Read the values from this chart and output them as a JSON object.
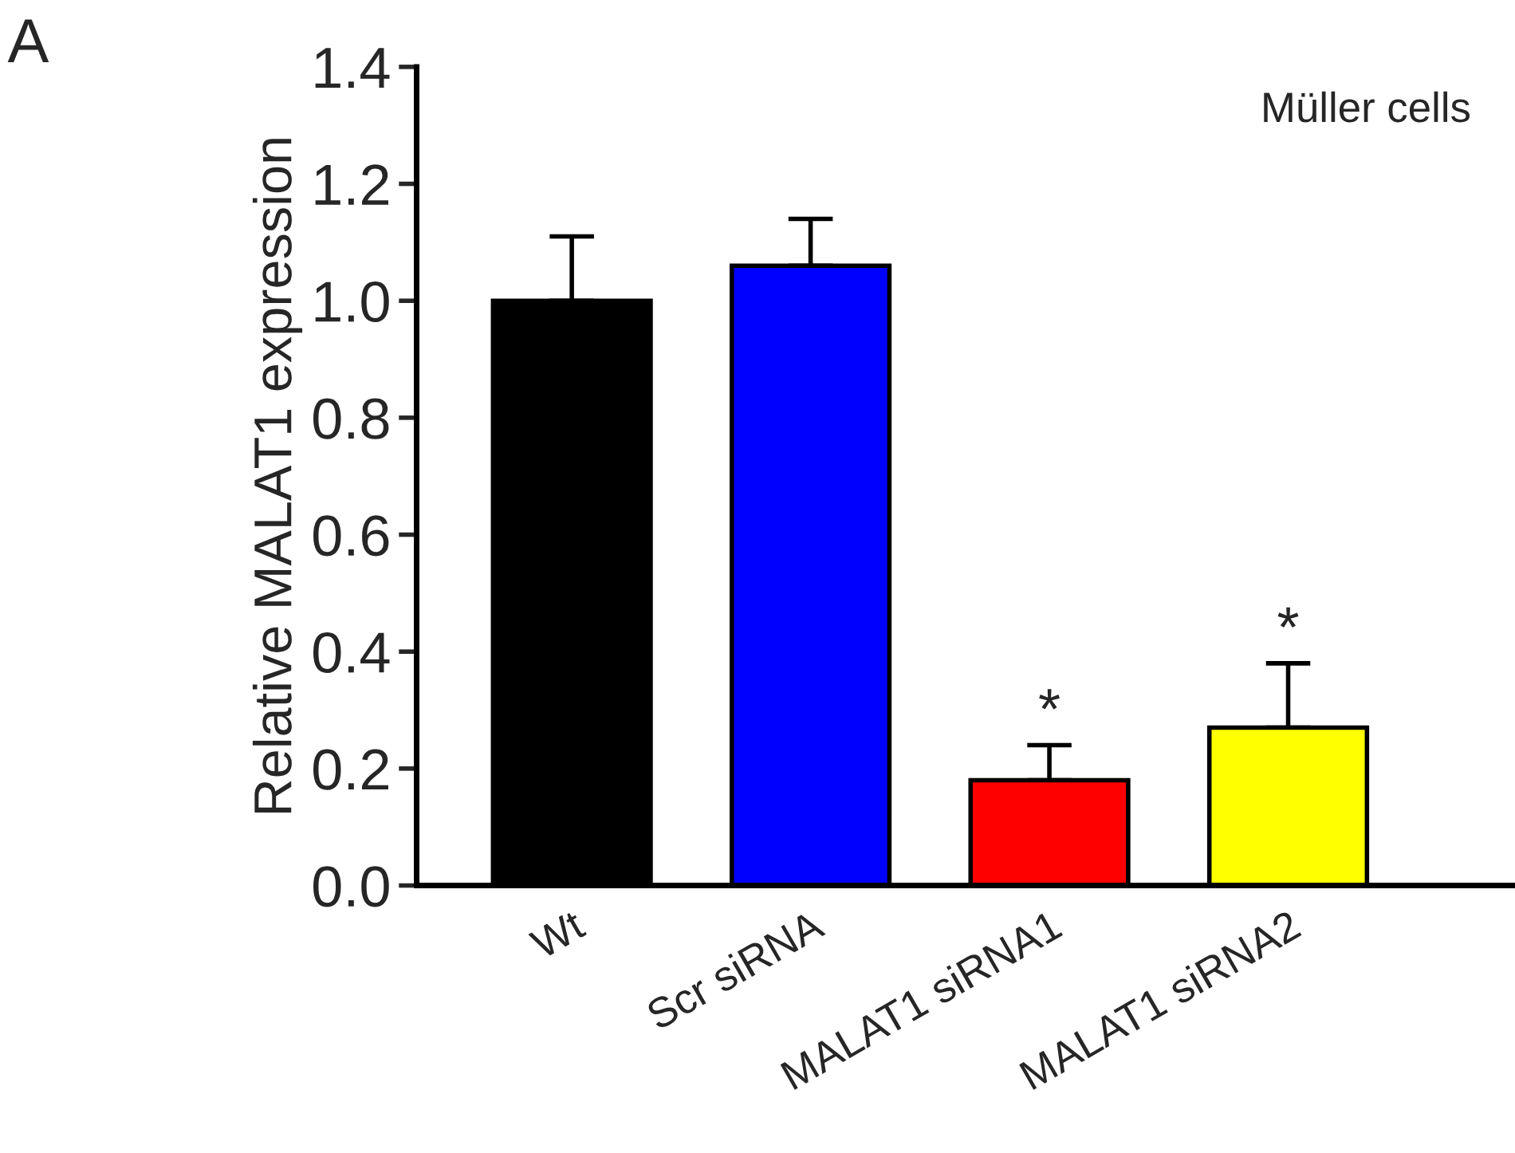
{
  "chart_data": {
    "type": "bar",
    "ylabel": "Relative MALAT1 expression",
    "categories": [
      "Wt",
      "Scr siRNA",
      "MALAT1 siRNA1",
      "MALAT1 siRNA2"
    ],
    "values": [
      1.0,
      1.06,
      0.18,
      0.27
    ],
    "colors": [
      "#000000",
      "#0000ff",
      "#ff0000",
      "#ffff00"
    ],
    "errors": [
      [
        1.0,
        1.11
      ],
      [
        1.06,
        1.14
      ],
      [
        0.18,
        0.24
      ],
      [
        0.27,
        0.38
      ]
    ],
    "ylim": [
      0,
      1.4
    ],
    "yticks": [
      {
        "value": 0,
        "label": "0.0"
      },
      {
        "value": 0.2,
        "label": "0.2"
      },
      {
        "value": 0.4,
        "label": "0.4"
      },
      {
        "value": 0.6,
        "label": "0.6"
      },
      {
        "value": 0.8,
        "label": "0.8"
      },
      {
        "value": 1.0,
        "label": "1.0"
      },
      {
        "value": 1.2,
        "label": "1.2"
      },
      {
        "value": 1.4,
        "label": "1.4"
      }
    ],
    "grid": false,
    "legend": false,
    "annotations": [
      "A",
      "Müller cells",
      {
        "text": "*",
        "x": "MALAT1 siRNA1",
        "y": 0.24
      },
      {
        "text": "*",
        "x": "MALAT1 siRNA2",
        "y": 0.38
      }
    ]
  }
}
